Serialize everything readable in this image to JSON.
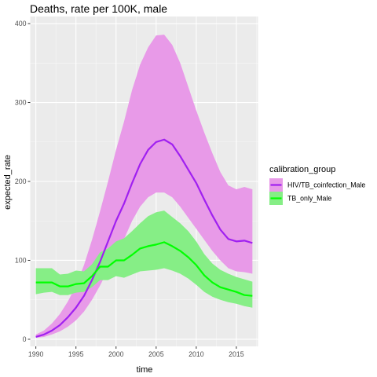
{
  "chart_data": {
    "type": "area",
    "title": "Deaths, rate per 100K, male",
    "xlabel": "time",
    "ylabel": "expected_rate",
    "xlim": [
      1989.3,
      2017.7
    ],
    "ylim": [
      -9,
      409
    ],
    "x_ticks": [
      1990,
      1995,
      2000,
      2005,
      2010,
      2015
    ],
    "y_ticks": [
      0,
      100,
      200,
      300,
      400
    ],
    "grid": true,
    "legend": {
      "title": "calibration_group",
      "position": "right"
    },
    "x": [
      1990,
      1991,
      1992,
      1993,
      1994,
      1995,
      1996,
      1997,
      1998,
      1999,
      2000,
      2001,
      2002,
      2003,
      2004,
      2005,
      2006,
      2007,
      2008,
      2009,
      2010,
      2011,
      2012,
      2013,
      2014,
      2015,
      2016,
      2017
    ],
    "series": [
      {
        "name": "HIV/TB_coinfection_Male",
        "line_color": "#a020f0",
        "ribbon_color": "#e89ae8",
        "values": [
          3,
          6,
          11,
          18,
          28,
          40,
          55,
          75,
          98,
          124,
          150,
          172,
          198,
          222,
          240,
          250,
          253,
          247,
          232,
          215,
          198,
          177,
          157,
          139,
          127,
          124,
          125,
          122
        ],
        "lower": [
          2,
          3,
          6,
          10,
          16,
          24,
          35,
          50,
          68,
          88,
          108,
          127,
          150,
          168,
          180,
          186,
          186,
          180,
          168,
          154,
          140,
          126,
          112,
          100,
          90,
          86,
          85,
          83
        ],
        "upper": [
          6,
          11,
          20,
          32,
          48,
          68,
          94,
          126,
          162,
          200,
          240,
          276,
          316,
          348,
          370,
          385,
          386,
          373,
          350,
          320,
          290,
          262,
          236,
          212,
          195,
          190,
          193,
          190
        ]
      },
      {
        "name": "TB_only_Male",
        "line_color": "#00ff00",
        "ribbon_color": "#86ee86",
        "values": [
          72,
          72,
          72,
          67,
          67,
          70,
          71,
          80,
          92,
          92,
          100,
          100,
          107,
          115,
          118,
          120,
          123,
          118,
          112,
          104,
          94,
          81,
          72,
          66,
          63,
          60,
          56,
          55
        ],
        "lower": [
          57,
          59,
          60,
          56,
          56,
          59,
          60,
          66,
          75,
          75,
          80,
          78,
          82,
          86,
          87,
          88,
          90,
          87,
          83,
          77,
          69,
          60,
          54,
          50,
          47,
          45,
          42,
          40
        ],
        "upper": [
          90,
          90,
          90,
          82,
          83,
          87,
          86,
          95,
          110,
          115,
          124,
          128,
          137,
          147,
          156,
          161,
          163,
          155,
          147,
          137,
          124,
          108,
          96,
          88,
          83,
          79,
          76,
          73
        ]
      }
    ]
  }
}
